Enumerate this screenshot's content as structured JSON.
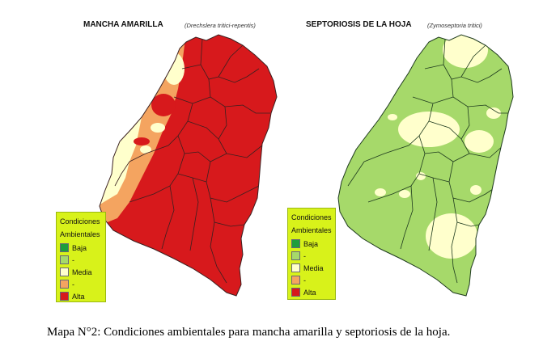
{
  "maps": [
    {
      "title": "MANCHA AMARILLA",
      "subtitle": "(Drechslera tritici-repentis)",
      "dominant_class": "Alta",
      "secondary_classes": [
        "Media",
        "-"
      ]
    },
    {
      "title": "SEPTORIOSIS DE LA HOJA",
      "subtitle": "(Zymoseptoria tritici)",
      "dominant_class": "-",
      "secondary_classes": [
        "Media"
      ]
    }
  ],
  "legend": {
    "heading_1": "Condiciones",
    "heading_2": "Ambientales",
    "items": [
      {
        "label": "Baja",
        "color": "#1e9e3c"
      },
      {
        "label": "-",
        "color": "#a6d96a"
      },
      {
        "label": "Media",
        "color": "#ffffcc"
      },
      {
        "label": "-",
        "color": "#f4a460"
      },
      {
        "label": "Alta",
        "color": "#d7191c"
      }
    ]
  },
  "caption": "Mapa N°2: Condiciones ambientales para mancha amarilla y septoriosis de la hoja."
}
